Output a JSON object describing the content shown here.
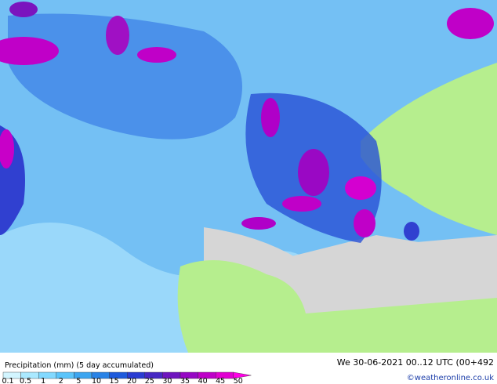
{
  "header": {
    "title": "Precipitation (mm) (5 day accumulated)",
    "valid_time": "We 30-06-2021 00..12 UTC (00+492",
    "credit": "©weatheronline.co.uk"
  },
  "legend": {
    "labels": [
      "0.1",
      "0.5",
      "1",
      "2",
      "5",
      "10",
      "15",
      "20",
      "25",
      "30",
      "35",
      "40",
      "45",
      "50"
    ],
    "colors": [
      "#d2f5ff",
      "#aae9ff",
      "#82d9ff",
      "#5ac4fa",
      "#3ca5f0",
      "#2882e6",
      "#1e5adc",
      "#2a3cd2",
      "#4628c3",
      "#6e14be",
      "#9608c4",
      "#be00c8",
      "#e100d2",
      "#ff00e6"
    ]
  }
}
